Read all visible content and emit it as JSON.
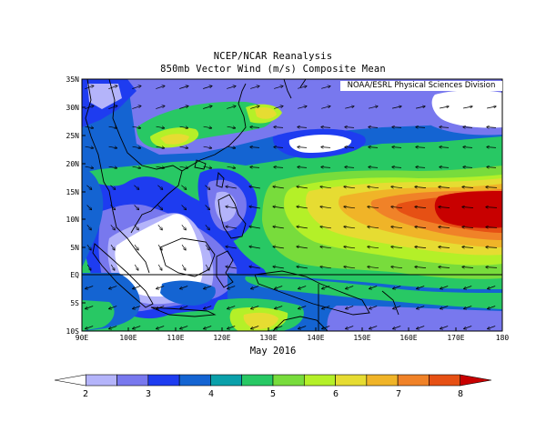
{
  "header": {
    "line1": "NCEP/NCAR Reanalysis",
    "line2": "850mb Vector Wind (m/s) Composite Mean",
    "credit": "NOAA/ESRL Physical Sciences Division"
  },
  "period_label": "May 2016",
  "lat_ticks": [
    "35N",
    "30N",
    "25N",
    "20N",
    "15N",
    "10N",
    "5N",
    "5S",
    "10S",
    "EQ"
  ],
  "lon_ticks": [
    "90E",
    "100E",
    "110E",
    "120E",
    "130E",
    "140E",
    "150E",
    "160E",
    "170E",
    "180"
  ],
  "chart_data": {
    "type": "heatmap",
    "variable": "850mb vector wind speed (m/s)",
    "lon_range": [
      90,
      180
    ],
    "lat_range": [
      -10,
      35
    ],
    "colorbar": {
      "labels": [
        "2",
        "3",
        "4",
        "5",
        "6",
        "7",
        "8"
      ],
      "colors": [
        "#ffffff",
        "#b4b4fa",
        "#7878ee",
        "#1e3cf0",
        "#1464d2",
        "#0aa0aa",
        "#28c864",
        "#78dc3c",
        "#b4f028",
        "#e6dc32",
        "#f0b428",
        "#f08228",
        "#e65014",
        "#c80000"
      ]
    },
    "features": [
      "wind-vectors",
      "coastlines",
      "equator-line"
    ]
  }
}
